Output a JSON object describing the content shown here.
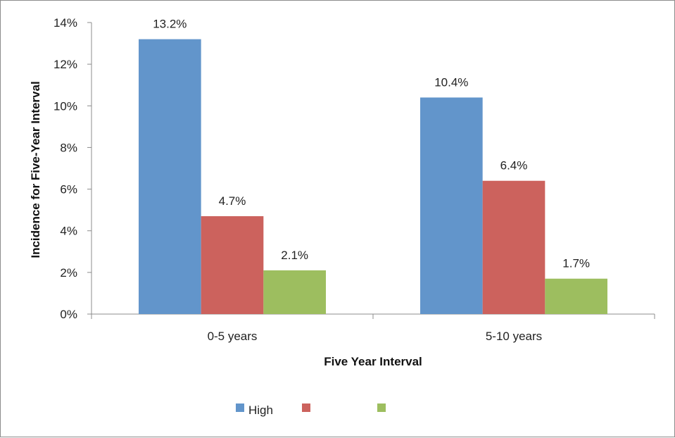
{
  "chart_data": {
    "type": "bar",
    "title": "",
    "xlabel": "Five Year Interval",
    "ylabel": "Incidence for Five-Year Interval",
    "categories": [
      "0-5 years",
      "5-10 years"
    ],
    "ylim": [
      0,
      14
    ],
    "yticks": [
      0,
      2,
      4,
      6,
      8,
      10,
      12,
      14
    ],
    "ytick_labels": [
      "0%",
      "2%",
      "4%",
      "6%",
      "8%",
      "10%",
      "12%",
      "14%"
    ],
    "grid": false,
    "legend_position": "bottom",
    "series": [
      {
        "name": "High",
        "color": "#6295CB",
        "values": [
          13.2,
          10.4
        ],
        "labels": [
          "13.2%",
          "10.4%"
        ]
      },
      {
        "name": "",
        "color": "#CC625D",
        "values": [
          4.7,
          6.4
        ],
        "labels": [
          "4.7%",
          "6.4%"
        ]
      },
      {
        "name": "",
        "color": "#9DBE5F",
        "values": [
          2.1,
          1.7
        ],
        "labels": [
          "2.1%",
          "1.7%"
        ]
      }
    ]
  }
}
